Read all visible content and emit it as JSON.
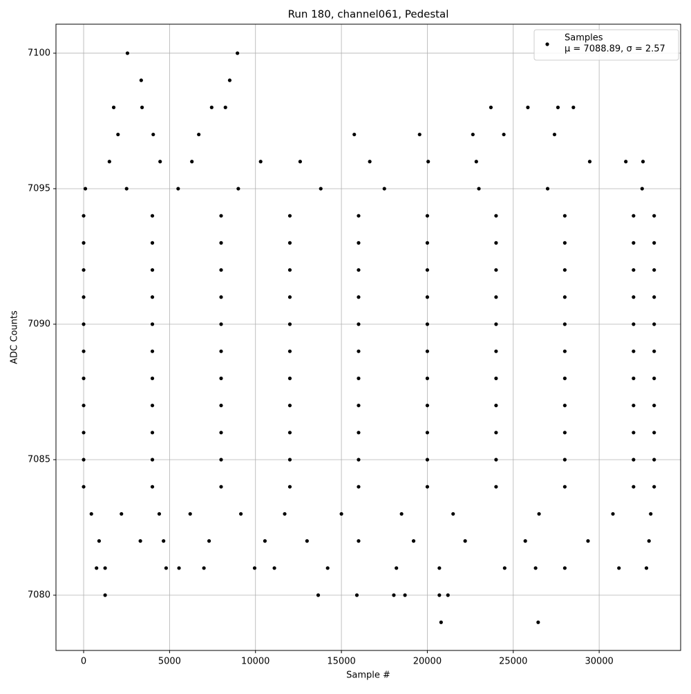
{
  "chart_data": {
    "type": "scatter",
    "title": "Run 180, channel061, Pedestal",
    "xlabel": "Sample #",
    "ylabel": "ADC Counts",
    "legend_note": "μ = 7088.89, σ = 2.57",
    "legend": "upper right",
    "grid": true,
    "xlim": [
      -1610,
      34740
    ],
    "ylim": [
      7077.96,
      7101.07
    ],
    "xticks": [
      0,
      5000,
      10000,
      15000,
      20000,
      25000,
      30000
    ],
    "yticks": [
      7080,
      7085,
      7090,
      7095,
      7100
    ],
    "x": [
      2550,
      8950,
      3350,
      8500,
      1750,
      3400,
      7450,
      8250,
      23700,
      25850,
      27600,
      28500,
      2000,
      4050,
      6700,
      15750,
      19550,
      22650,
      24450,
      27400,
      1500,
      4450,
      6300,
      10300,
      12600,
      16650,
      20050,
      22850,
      29450,
      31550,
      32550,
      100,
      2500,
      5500,
      9000,
      13800,
      17500,
      23000,
      27000,
      32500,
      0,
      4000,
      8000,
      12000,
      16000,
      20000,
      24000,
      28000,
      32000,
      33200,
      0,
      4000,
      8000,
      12000,
      16000,
      20000,
      24000,
      28000,
      32000,
      33200,
      0,
      4000,
      8000,
      12000,
      16000,
      20000,
      24000,
      28000,
      32000,
      33200,
      0,
      4000,
      8000,
      12000,
      16000,
      20000,
      24000,
      28000,
      32000,
      33200,
      0,
      4000,
      8000,
      12000,
      16000,
      20000,
      24000,
      28000,
      32000,
      33200,
      0,
      4000,
      8000,
      12000,
      16000,
      20000,
      24000,
      28000,
      32000,
      33200,
      0,
      4000,
      8000,
      12000,
      16000,
      20000,
      24000,
      28000,
      32000,
      33200,
      0,
      4000,
      8000,
      12000,
      16000,
      20000,
      24000,
      28000,
      32000,
      33200,
      0,
      4000,
      8000,
      12000,
      16000,
      20000,
      24000,
      28000,
      32000,
      33200,
      0,
      4000,
      8000,
      12000,
      16000,
      20000,
      24000,
      28000,
      32000,
      33200,
      0,
      4000,
      8000,
      12000,
      16000,
      20000,
      24000,
      28000,
      32000,
      33200,
      450,
      2200,
      4400,
      6200,
      9150,
      11700,
      15000,
      18500,
      21500,
      26500,
      30800,
      33000,
      900,
      3300,
      4650,
      7300,
      10550,
      13000,
      16000,
      19200,
      22200,
      25700,
      29350,
      32900,
      750,
      1250,
      4800,
      5550,
      7000,
      9950,
      11100,
      14200,
      18200,
      20700,
      24500,
      26300,
      28000,
      31150,
      32750,
      1250,
      13650,
      15900,
      18050,
      18700,
      20700,
      21200,
      20800,
      26450
    ],
    "series": [
      {
        "name": "Samples",
        "color": "#000000",
        "values": [
          7100,
          7100,
          7099,
          7099,
          7098,
          7098,
          7098,
          7098,
          7098,
          7098,
          7098,
          7098,
          7097,
          7097,
          7097,
          7097,
          7097,
          7097,
          7097,
          7097,
          7096,
          7096,
          7096,
          7096,
          7096,
          7096,
          7096,
          7096,
          7096,
          7096,
          7096,
          7095,
          7095,
          7095,
          7095,
          7095,
          7095,
          7095,
          7095,
          7095,
          7094,
          7094,
          7094,
          7094,
          7094,
          7094,
          7094,
          7094,
          7094,
          7094,
          7093,
          7093,
          7093,
          7093,
          7093,
          7093,
          7093,
          7093,
          7093,
          7093,
          7092,
          7092,
          7092,
          7092,
          7092,
          7092,
          7092,
          7092,
          7092,
          7092,
          7091,
          7091,
          7091,
          7091,
          7091,
          7091,
          7091,
          7091,
          7091,
          7091,
          7090,
          7090,
          7090,
          7090,
          7090,
          7090,
          7090,
          7090,
          7090,
          7090,
          7089,
          7089,
          7089,
          7089,
          7089,
          7089,
          7089,
          7089,
          7089,
          7089,
          7088,
          7088,
          7088,
          7088,
          7088,
          7088,
          7088,
          7088,
          7088,
          7088,
          7087,
          7087,
          7087,
          7087,
          7087,
          7087,
          7087,
          7087,
          7087,
          7087,
          7086,
          7086,
          7086,
          7086,
          7086,
          7086,
          7086,
          7086,
          7086,
          7086,
          7085,
          7085,
          7085,
          7085,
          7085,
          7085,
          7085,
          7085,
          7085,
          7085,
          7084,
          7084,
          7084,
          7084,
          7084,
          7084,
          7084,
          7084,
          7084,
          7084,
          7083,
          7083,
          7083,
          7083,
          7083,
          7083,
          7083,
          7083,
          7083,
          7083,
          7083,
          7083,
          7082,
          7082,
          7082,
          7082,
          7082,
          7082,
          7082,
          7082,
          7082,
          7082,
          7082,
          7082,
          7081,
          7081,
          7081,
          7081,
          7081,
          7081,
          7081,
          7081,
          7081,
          7081,
          7081,
          7081,
          7081,
          7081,
          7081,
          7080,
          7080,
          7080,
          7080,
          7080,
          7080,
          7080,
          7079,
          7079
        ]
      }
    ]
  }
}
